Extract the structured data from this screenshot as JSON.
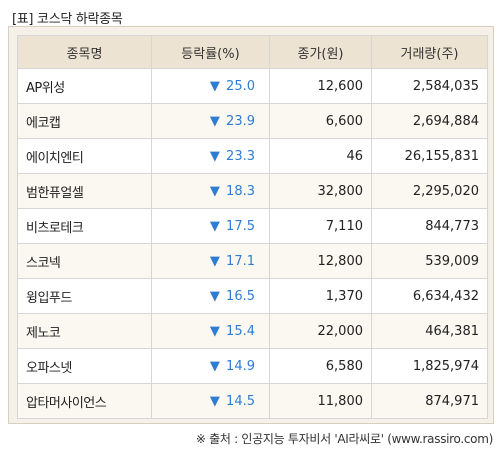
{
  "title": "[표] 코스닥 하락종목",
  "columns": [
    "종목명",
    "등락률(%)",
    "종가(원)",
    "거래량(주)"
  ],
  "down_arrow": "▼",
  "rows": [
    {
      "name": "AP위성",
      "change": "25.0",
      "price": "12,600",
      "volume": "2,584,035"
    },
    {
      "name": "에코캡",
      "change": "23.9",
      "price": "6,600",
      "volume": "2,694,884"
    },
    {
      "name": "에이치엔티",
      "change": "23.3",
      "price": "46",
      "volume": "26,155,831"
    },
    {
      "name": "범한퓨얼셀",
      "change": "18.3",
      "price": "32,800",
      "volume": "2,295,020"
    },
    {
      "name": "비츠로테크",
      "change": "17.5",
      "price": "7,110",
      "volume": "844,773"
    },
    {
      "name": "스코넥",
      "change": "17.1",
      "price": "12,800",
      "volume": "539,009"
    },
    {
      "name": "윙입푸드",
      "change": "16.5",
      "price": "1,370",
      "volume": "6,634,432"
    },
    {
      "name": "제노코",
      "change": "15.4",
      "price": "22,000",
      "volume": "464,381"
    },
    {
      "name": "오파스넷",
      "change": "14.9",
      "price": "6,580",
      "volume": "1,825,974"
    },
    {
      "name": "압타머사이언스",
      "change": "14.5",
      "price": "11,800",
      "volume": "874,971"
    }
  ],
  "source": "※ 출처 : 인공지능 투자비서 'AI라씨로' (www.rassiro.com)",
  "colors": {
    "header_bg": "#ece3d2",
    "down": "#2f7cd3",
    "frame_bg": "#f6f1e8"
  }
}
